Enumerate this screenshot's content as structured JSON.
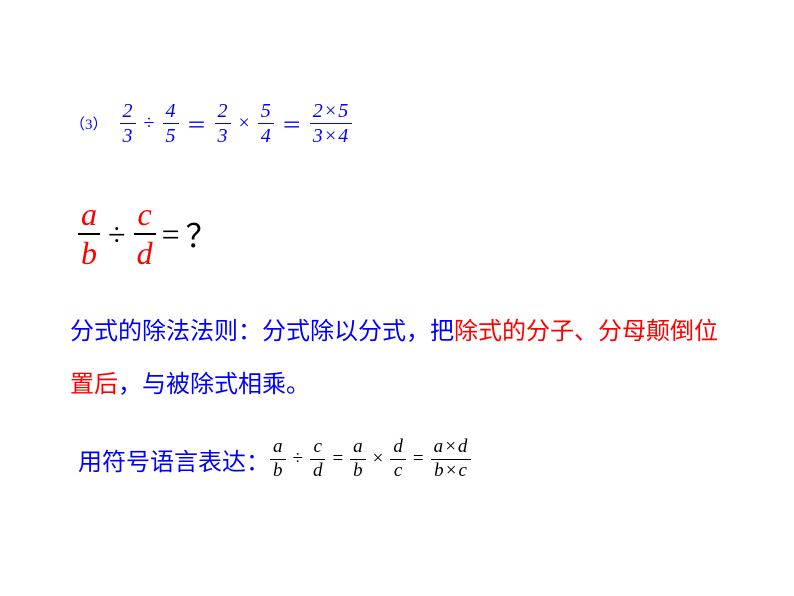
{
  "colors": {
    "blue": "#0000ff",
    "red": "#ff0000",
    "black": "#000000",
    "bg": "#ffffff"
  },
  "item_label": "（3）",
  "eq1": {
    "f1": {
      "n": "2",
      "d": "3"
    },
    "op1": "÷",
    "f2": {
      "n": "4",
      "d": "5"
    },
    "eq1": "＝",
    "f3": {
      "n": "2",
      "d": "3"
    },
    "op2": "×",
    "f4": {
      "n": "5",
      "d": "4"
    },
    "eq2": "＝",
    "f5": {
      "n": "2×5",
      "d": "3×4"
    }
  },
  "eq2": {
    "f1": {
      "n": "a",
      "d": "b"
    },
    "op1": "÷",
    "f2": {
      "n": "c",
      "d": "d"
    },
    "eq": "=",
    "qm": "？"
  },
  "para": {
    "p1": "分式的除法法则：分式除以分式，把",
    "p2": "除式的分子、分母颠倒位置后",
    "p3": "，与被除式相乘。"
  },
  "symlabel": "用符号语言表达：",
  "eq3": {
    "f1": {
      "n": "a",
      "d": "b"
    },
    "op1": "÷",
    "f2": {
      "n": "c",
      "d": "d"
    },
    "eq1": "=",
    "f3": {
      "n": "a",
      "d": "b"
    },
    "op2": "×",
    "f4": {
      "n": "d",
      "d": "c"
    },
    "eq2": "=",
    "f5": {
      "n": "a×d",
      "d": "b×c"
    }
  }
}
